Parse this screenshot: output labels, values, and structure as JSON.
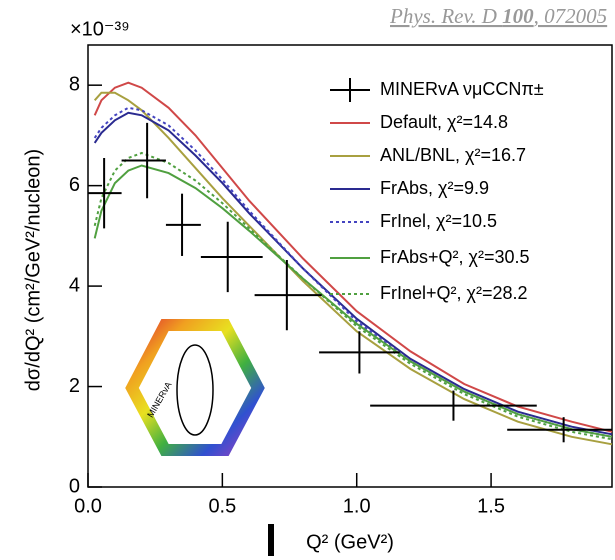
{
  "chart_data": {
    "type": "line",
    "reference": {
      "journal": "Phys. Rev. D ",
      "volume": "100",
      "pages": ", 072005"
    },
    "multiplier": "×10⁻³⁹",
    "xlabel": "Q² (GeV²)",
    "ylabel": "dσ/dQ² (cm²/GeV²/nucleon)",
    "logo_text": "MINERvA",
    "xlim": [
      0,
      1.95
    ],
    "ylim": [
      0,
      8.8
    ],
    "xticks": [
      {
        "value": 0,
        "label": "0.0"
      },
      {
        "value": 0.5,
        "label": "0.5"
      },
      {
        "value": 1,
        "label": "1.0"
      },
      {
        "value": 1.5,
        "label": "1.5"
      }
    ],
    "yticks": [
      0,
      2,
      4,
      6,
      8
    ],
    "data": {
      "name": "MINERvA νμCCNπ±",
      "color": "#000000",
      "x": [
        0.06,
        0.22,
        0.35,
        0.52,
        0.74,
        1.01,
        1.36,
        1.77
      ],
      "xlow": [
        0.0,
        0.125,
        0.29,
        0.42,
        0.62,
        0.86,
        1.05,
        1.56
      ],
      "xhigh": [
        0.125,
        0.29,
        0.42,
        0.65,
        0.87,
        1.16,
        1.67,
        1.95
      ],
      "values": [
        5.85,
        6.5,
        5.22,
        4.58,
        3.82,
        2.68,
        1.62,
        1.14
      ],
      "yerr": [
        0.7,
        0.75,
        0.62,
        0.7,
        0.7,
        0.42,
        0.3,
        0.25
      ]
    },
    "x": [
      0.025,
      0.05,
      0.1,
      0.15,
      0.2,
      0.3,
      0.4,
      0.5,
      0.6,
      0.8,
      1.0,
      1.2,
      1.4,
      1.6,
      1.8,
      1.95
    ],
    "series": [
      {
        "name": "Default, χ²=14.8",
        "color": "#d04848",
        "dashed": false,
        "values": [
          7.4,
          7.7,
          7.95,
          8.05,
          7.95,
          7.55,
          7.0,
          6.35,
          5.7,
          4.55,
          3.5,
          2.7,
          2.05,
          1.6,
          1.3,
          1.1
        ]
      },
      {
        "name": "ANL/BNL, χ²=16.7",
        "color": "#a8a040",
        "dashed": false,
        "values": [
          7.7,
          7.85,
          7.85,
          7.7,
          7.5,
          6.95,
          6.35,
          5.75,
          5.2,
          4.1,
          3.1,
          2.35,
          1.75,
          1.3,
          1.0,
          0.85
        ]
      },
      {
        "name": "FrAbs, χ²=9.9",
        "color": "#2a2a90",
        "dashed": false,
        "values": [
          6.85,
          7.05,
          7.3,
          7.45,
          7.4,
          7.1,
          6.6,
          6.05,
          5.45,
          4.35,
          3.35,
          2.55,
          1.95,
          1.5,
          1.2,
          1.05
        ]
      },
      {
        "name": "FrInel, χ²=10.5",
        "color": "#4444c0",
        "dashed": true,
        "values": [
          6.95,
          7.15,
          7.4,
          7.55,
          7.5,
          7.2,
          6.7,
          6.12,
          5.5,
          4.35,
          3.3,
          2.5,
          1.9,
          1.45,
          1.15,
          1.0
        ]
      },
      {
        "name": "FrAbs+Q², χ²=30.5",
        "color": "#50a040",
        "dashed": false,
        "values": [
          4.95,
          5.5,
          6.05,
          6.3,
          6.4,
          6.25,
          5.95,
          5.55,
          5.1,
          4.15,
          3.25,
          2.5,
          1.9,
          1.45,
          1.15,
          1.0
        ]
      },
      {
        "name": "FrInel+Q², χ²=28.2",
        "color": "#50a040",
        "dashed": true,
        "values": [
          5.2,
          5.75,
          6.3,
          6.55,
          6.65,
          6.45,
          6.1,
          5.65,
          5.15,
          4.15,
          3.2,
          2.45,
          1.85,
          1.4,
          1.1,
          0.95
        ]
      }
    ]
  }
}
